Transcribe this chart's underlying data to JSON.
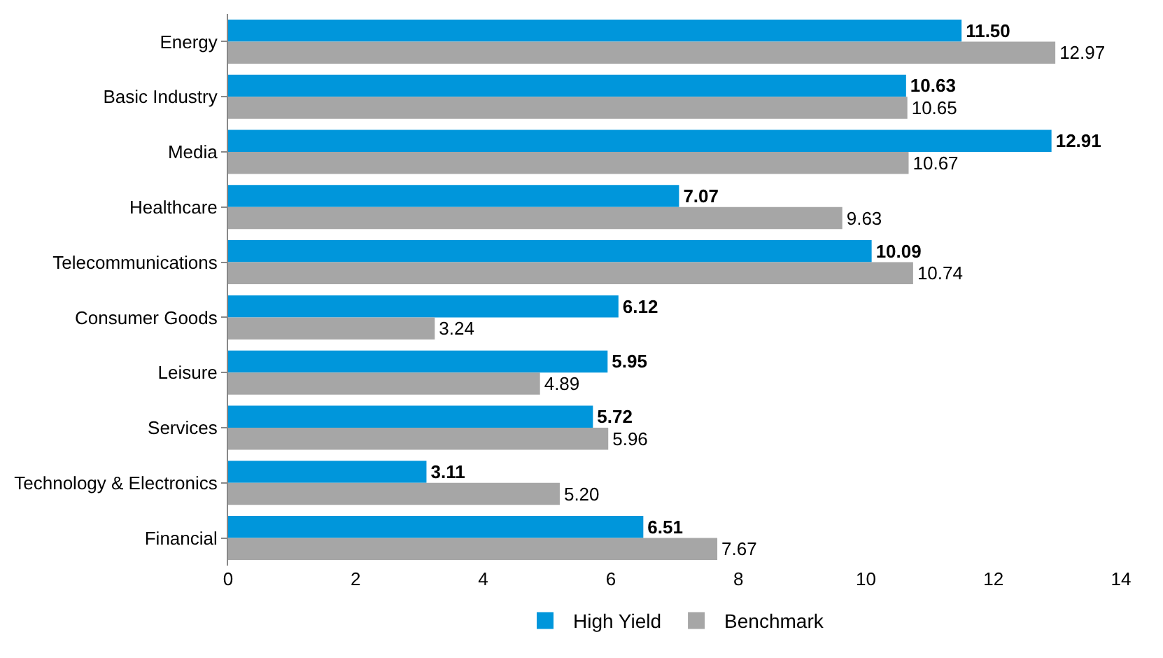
{
  "chart_data": {
    "type": "bar",
    "orientation": "horizontal",
    "categories": [
      "Energy",
      "Basic Industry",
      "Media",
      "Healthcare",
      "Telecommunications",
      "Consumer Goods",
      "Leisure",
      "Services",
      "Technology & Electronics",
      "Financial"
    ],
    "series": [
      {
        "name": "High Yield",
        "color": "#0096db",
        "values": [
          11.5,
          10.63,
          12.91,
          7.07,
          10.09,
          6.12,
          5.95,
          5.72,
          3.11,
          6.51
        ],
        "value_labels": [
          "11.50",
          "10.63",
          "12.91",
          "7.07",
          "10.09",
          "6.12",
          "5.95",
          "5.72",
          "3.11",
          "6.51"
        ]
      },
      {
        "name": "Benchmark",
        "color": "#a6a6a6",
        "values": [
          12.97,
          10.65,
          10.67,
          9.63,
          10.74,
          3.24,
          4.89,
          5.96,
          5.2,
          7.67
        ],
        "value_labels": [
          "12.97",
          "10.65",
          "10.67",
          "9.63",
          "10.74",
          "3.24",
          "4.89",
          "5.96",
          "5.20",
          "7.67"
        ]
      }
    ],
    "xlim": [
      0,
      14
    ],
    "xticks": [
      0,
      2,
      4,
      6,
      8,
      10,
      12,
      14
    ],
    "legend": "bottom"
  }
}
